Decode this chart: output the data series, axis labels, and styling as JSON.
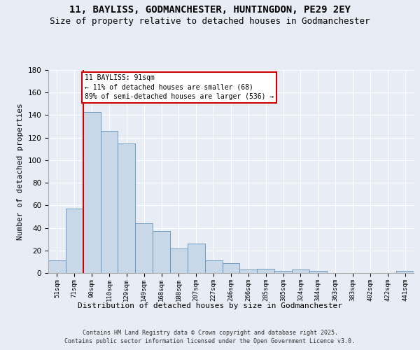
{
  "title": "11, BAYLISS, GODMANCHESTER, HUNTINGDON, PE29 2EY",
  "subtitle": "Size of property relative to detached houses in Godmanchester",
  "xlabel": "Distribution of detached houses by size in Godmanchester",
  "ylabel": "Number of detached properties",
  "categories": [
    "51sqm",
    "71sqm",
    "90sqm",
    "110sqm",
    "129sqm",
    "149sqm",
    "168sqm",
    "188sqm",
    "207sqm",
    "227sqm",
    "246sqm",
    "266sqm",
    "285sqm",
    "305sqm",
    "324sqm",
    "344sqm",
    "363sqm",
    "383sqm",
    "402sqm",
    "422sqm",
    "441sqm"
  ],
  "bar_heights": [
    11,
    57,
    143,
    126,
    115,
    44,
    37,
    22,
    26,
    11,
    9,
    3,
    4,
    2,
    3,
    2,
    0,
    0,
    0,
    0,
    2
  ],
  "bar_color": "#c8d8e8",
  "bar_edge_color": "#6090b8",
  "background_color": "#e8edf5",
  "grid_color": "#ffffff",
  "vline_color": "#cc0000",
  "vline_x": 1.5,
  "annotation_text": "11 BAYLISS: 91sqm\n← 11% of detached houses are smaller (68)\n89% of semi-detached houses are larger (536) →",
  "annotation_box_color": "#ffffff",
  "annotation_box_edge": "#cc0000",
  "ylim": [
    0,
    180
  ],
  "yticks": [
    0,
    20,
    40,
    60,
    80,
    100,
    120,
    140,
    160,
    180
  ],
  "footer1": "Contains HM Land Registry data © Crown copyright and database right 2025.",
  "footer2": "Contains public sector information licensed under the Open Government Licence v3.0.",
  "title_fontsize": 10,
  "subtitle_fontsize": 9,
  "tick_fontsize": 6.5,
  "label_fontsize": 8,
  "ylabel_full": "Number of detached properties"
}
